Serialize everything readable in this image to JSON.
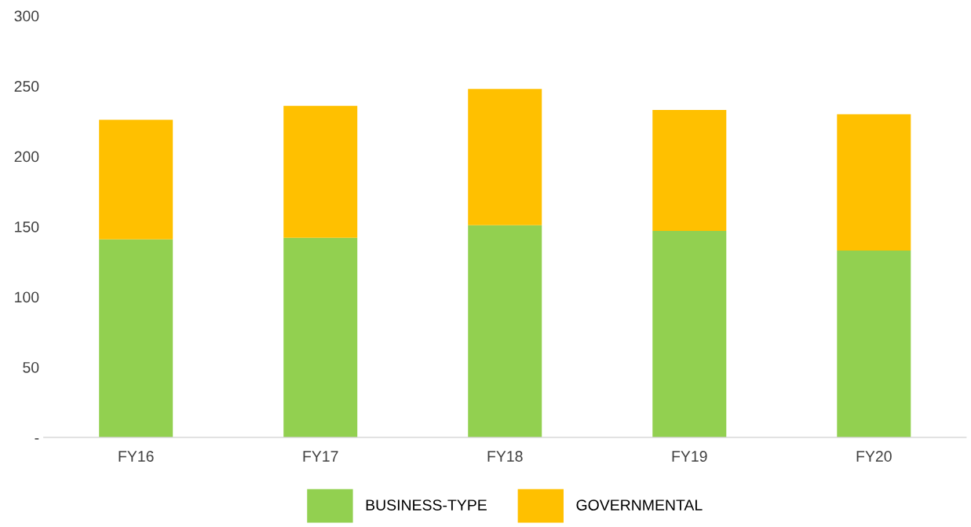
{
  "chart_data": {
    "type": "bar",
    "stacked": true,
    "categories": [
      "FY16",
      "FY17",
      "FY18",
      "FY19",
      "FY20"
    ],
    "series": [
      {
        "name": "BUSINESS-TYPE",
        "color": "#92d050",
        "values": [
          141,
          142,
          151,
          147,
          133
        ]
      },
      {
        "name": "GOVERNMENTAL",
        "color": "#ffc000",
        "values": [
          85,
          94,
          97,
          86,
          97
        ]
      }
    ],
    "ylim": [
      0,
      300
    ],
    "yticks": [
      {
        "value": 0,
        "label": "-"
      },
      50,
      100,
      150,
      200,
      250,
      300
    ],
    "grid": false,
    "legend": "bottom"
  }
}
